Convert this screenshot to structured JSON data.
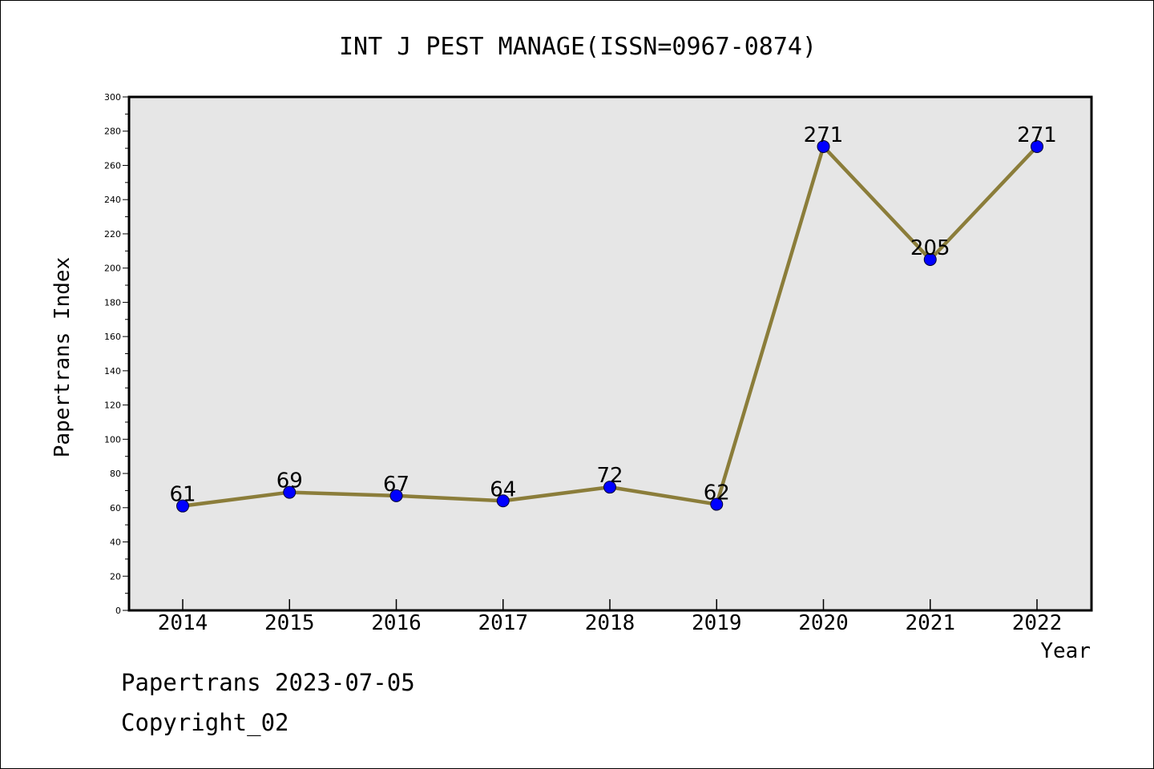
{
  "chart_data": {
    "type": "line",
    "title": "INT J PEST MANAGE(ISSN=0967-0874)",
    "xlabel": "Year",
    "ylabel": "Papertrans Index",
    "categories": [
      "2014",
      "2015",
      "2016",
      "2017",
      "2018",
      "2019",
      "2020",
      "2021",
      "2022"
    ],
    "series": [
      {
        "values": [
          61,
          69,
          67,
          64,
          72,
          62,
          271,
          205,
          271
        ]
      }
    ],
    "data_labels": [
      "61",
      "69",
      "67",
      "64",
      "72",
      "62",
      "271",
      "205",
      "271"
    ],
    "ylim": [
      0,
      300
    ],
    "y_ticks": [
      "0",
      "20",
      "40",
      "60",
      "80",
      "100",
      "120",
      "140",
      "160",
      "180",
      "200",
      "220",
      "240",
      "260",
      "280",
      "300"
    ],
    "grid": false,
    "legend": "none",
    "colors": {
      "line": "#8B7D3A",
      "marker": "#0000FF",
      "plot_background": "#E6E6E6",
      "axes": "#000000"
    }
  },
  "footer": {
    "line1": "Papertrans 2023-07-05",
    "line2": "Copyright_02"
  }
}
